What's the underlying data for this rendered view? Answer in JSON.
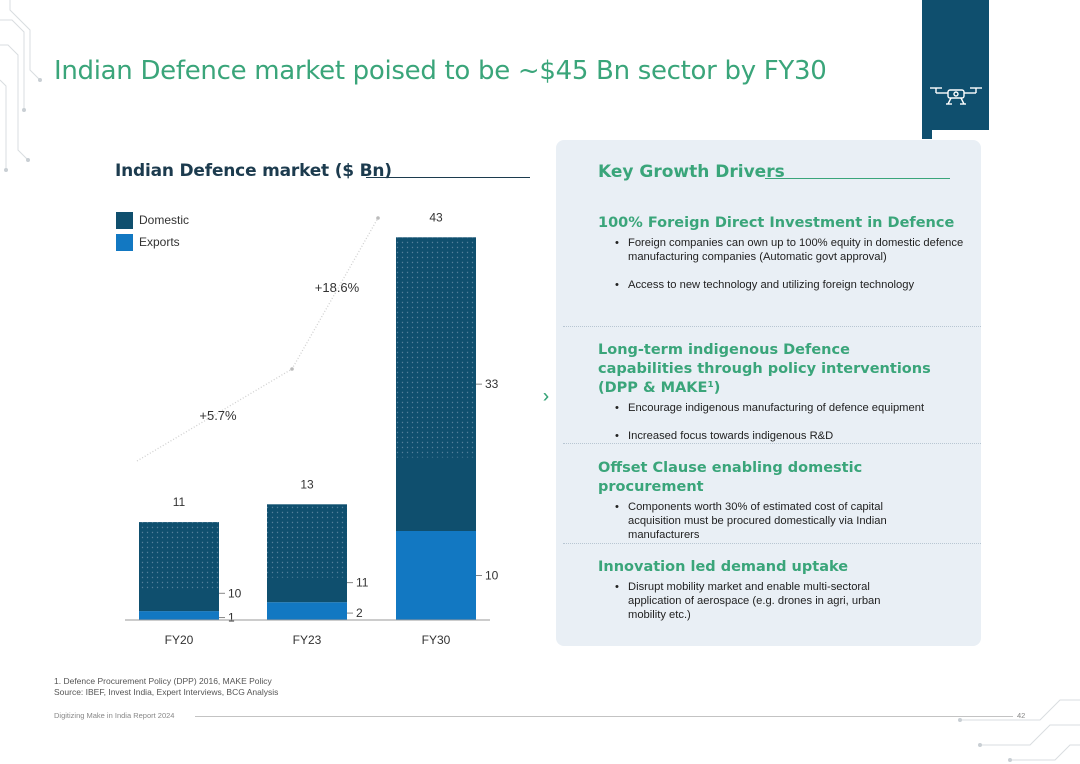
{
  "page": {
    "title": "Indian Defence market poised to be ~$45 Bn sector by FY30"
  },
  "colors": {
    "accent_green": "#3aa57a",
    "domestic": "#0f4f6e",
    "exports": "#1278c2",
    "panel_bg": "#e9eff5"
  },
  "chart_data": {
    "type": "bar",
    "stacked": true,
    "title": "Indian Defence market ($ Bn)",
    "categories": [
      "FY20",
      "FY23",
      "FY30"
    ],
    "series": [
      {
        "name": "Domestic",
        "values": [
          10,
          11,
          33
        ]
      },
      {
        "name": "Exports",
        "values": [
          1,
          2,
          10
        ]
      }
    ],
    "totals": [
      "11",
      "13",
      "43"
    ],
    "segment_labels": {
      "Domestic": [
        "10",
        "11",
        "33"
      ],
      "Exports": [
        "1",
        "2",
        "10"
      ]
    },
    "growth_annotations": [
      {
        "label": "+5.7%",
        "from": "FY20",
        "to": "FY23"
      },
      {
        "label": "+18.6%",
        "from": "FY23",
        "to": "FY30"
      }
    ],
    "legend": [
      "Domestic",
      "Exports"
    ],
    "ylim": [
      0,
      45
    ],
    "legend_position": "top-left",
    "xlabel": "",
    "ylabel": ""
  },
  "drivers": {
    "title": "Key Growth Drivers",
    "items": [
      {
        "heading": "100% Foreign Direct Investment in Defence",
        "bullets": [
          "Foreign companies can own up to 100% equity in domestic defence manufacturing companies (Automatic govt approval)",
          "Access to new technology and utilizing foreign technology"
        ]
      },
      {
        "heading": "Long-term indigenous Defence capabilities through policy interventions (DPP & MAKE¹)",
        "bullets": [
          "Encourage indigenous manufacturing of defence equipment",
          "Increased focus towards indigenous R&D"
        ]
      },
      {
        "heading": "Offset Clause enabling domestic procurement",
        "bullets": [
          "Components worth 30% of estimated cost of capital acquisition must be procured domestically via Indian manufacturers"
        ]
      },
      {
        "heading": "Innovation led demand uptake",
        "bullets": [
          "Disrupt mobility market and enable multi-sectoral application of aerospace (e.g. drones in agri, urban mobility etc.)"
        ]
      }
    ]
  },
  "footnotes": {
    "line1": "1. Defence Procurement Policy (DPP) 2016, MAKE Policy",
    "line2": "Source: IBEF, Invest India, Expert Interviews, BCG Analysis"
  },
  "footer": {
    "report": "Digitizing Make in India Report 2024",
    "page": "42"
  },
  "icons": {
    "drone": "drone-icon",
    "arrows": "triple-chevron-right-icon"
  }
}
